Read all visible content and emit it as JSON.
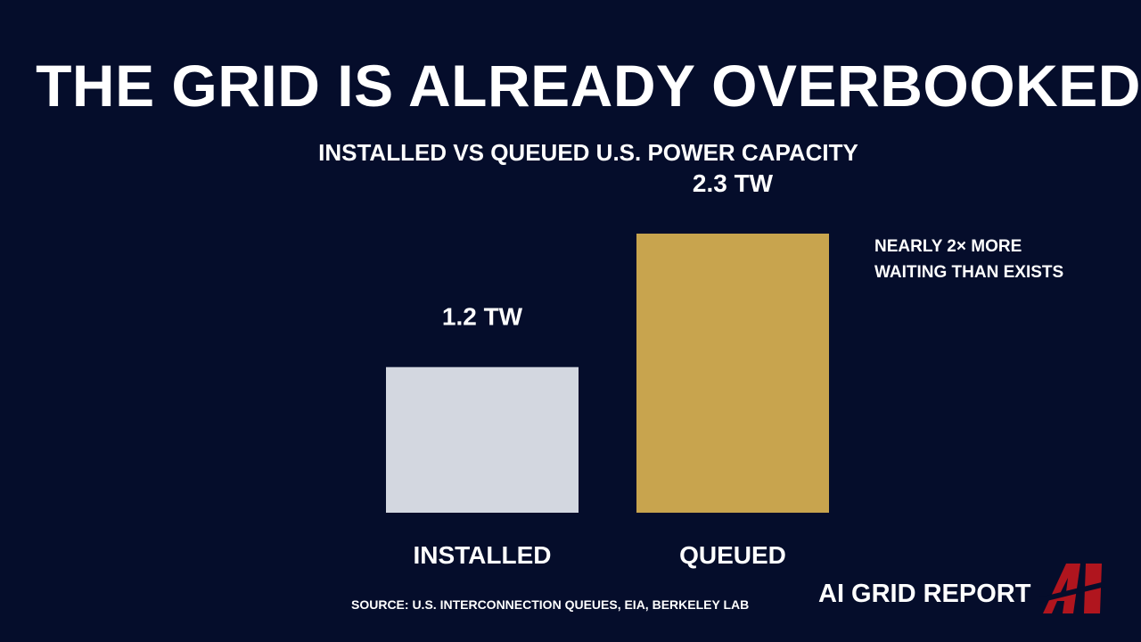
{
  "title": "THE GRID IS ALREADY OVERBOOKED",
  "subtitle": "INSTALLED VS QUEUED U.S. POWER CAPACITY",
  "annotation": {
    "line1": "NEARLY 2× MORE",
    "line2": "WAITING THAN EXISTS"
  },
  "source": "SOURCE: U.S. INTERCONNECTION QUEUES, EIA, BERKELEY LAB",
  "brand": {
    "name": "AI GRID REPORT",
    "logo_text": "AI",
    "logo_color": "#b0151e"
  },
  "colors": {
    "background": "#050d2b",
    "installed": "#d3d7e0",
    "queued": "#c8a44e"
  },
  "chart_data": {
    "type": "bar",
    "categories": [
      "INSTALLED",
      "QUEUED"
    ],
    "values": [
      1.2,
      2.3
    ],
    "value_labels": [
      "1.2 TW",
      "2.3 TW"
    ],
    "colors": [
      "#d3d7e0",
      "#c8a44e"
    ],
    "title": "INSTALLED VS QUEUED U.S. POWER CAPACITY",
    "xlabel": "",
    "ylabel": "",
    "ylim": [
      0,
      2.3
    ]
  }
}
